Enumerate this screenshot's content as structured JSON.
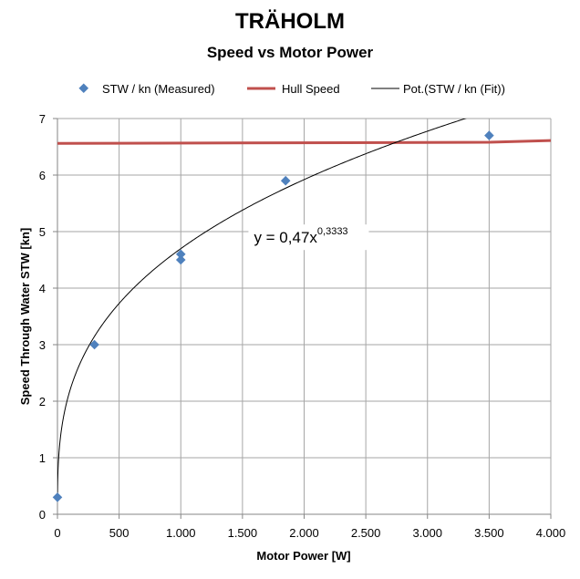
{
  "chart_data": {
    "type": "scatter",
    "title": "TRÄHOLM",
    "subtitle": "Speed vs Motor Power",
    "xlabel": "Motor Power [W]",
    "ylabel": "Speed Through Water  STW [kn]",
    "xlim": [
      0,
      4000
    ],
    "ylim": [
      0,
      7
    ],
    "xticks": [
      0,
      500,
      1000,
      1500,
      2000,
      2500,
      3000,
      3500,
      4000
    ],
    "xtick_labels": [
      "0",
      "500",
      "1.000",
      "1.500",
      "2.000",
      "2.500",
      "3.000",
      "3.500",
      "4.000"
    ],
    "yticks": [
      0,
      1,
      2,
      3,
      4,
      5,
      6,
      7
    ],
    "ytick_labels": [
      "0",
      "1",
      "2",
      "3",
      "4",
      "5",
      "6",
      "7"
    ],
    "grid": true,
    "legend_position": "top",
    "series": [
      {
        "name": "STW / kn (Measured)",
        "kind": "markers",
        "marker": "diamond",
        "color": "#4f81bd",
        "x": [
          0,
          300,
          1000,
          1000,
          1850,
          3500
        ],
        "y": [
          0.3,
          3.0,
          4.6,
          4.5,
          5.9,
          6.7
        ]
      },
      {
        "name": "Hull Speed",
        "kind": "line",
        "color": "#c0504d",
        "x": [
          0,
          3500,
          4000
        ],
        "y": [
          6.56,
          6.58,
          6.61
        ]
      },
      {
        "name": "Pot.(STW / kn (Fit))",
        "kind": "power-fit",
        "color": "#000000",
        "coefficient": 0.47,
        "exponent": 0.3333
      }
    ],
    "annotation": {
      "text_base": "y = 0,47x",
      "text_exponent": "0,3333",
      "x": 1800,
      "y": 4.9
    }
  }
}
